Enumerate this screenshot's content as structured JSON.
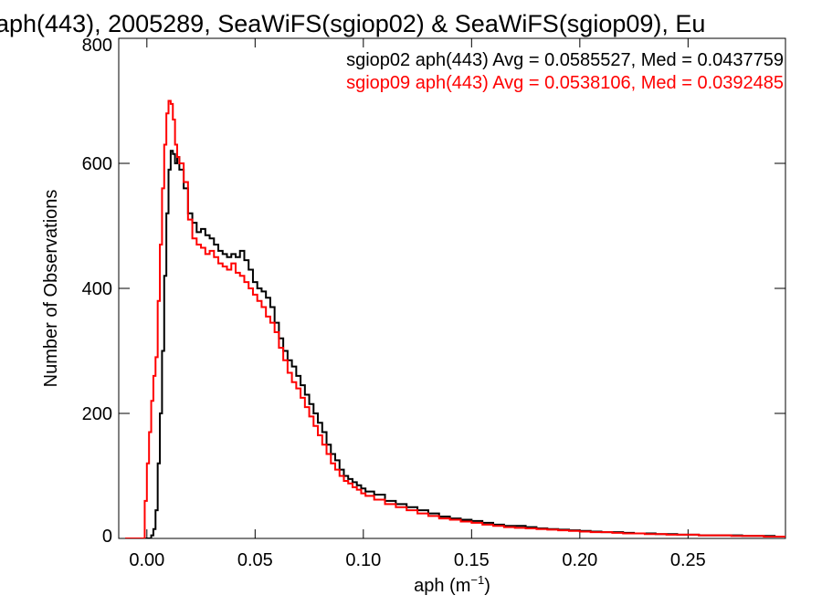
{
  "chart_data": {
    "type": "histogram-step",
    "title": "aph(443), 2005289, SeaWiFS(sgiop02) & SeaWiFS(sgiop09), Eu",
    "xlabel_base": "aph (m",
    "xlabel_sup": "−1",
    "xlabel_close": ")",
    "ylabel": "Number of Observations",
    "xlim": [
      -0.013,
      0.295
    ],
    "ylim": [
      0,
      800
    ],
    "xticks": [
      0.0,
      0.05,
      0.1,
      0.15,
      0.2,
      0.25
    ],
    "xtick_labels": [
      "0.00",
      "0.05",
      "0.10",
      "0.15",
      "0.20",
      "0.25"
    ],
    "yticks": [
      0,
      200,
      400,
      600,
      800
    ],
    "ytick_labels": [
      "0",
      "200",
      "400",
      "600",
      "800"
    ],
    "annotations": [
      {
        "text": "sgiop02 aph(443) Avg = 0.0585527, Med = 0.0437759",
        "color": "#000000"
      },
      {
        "text": "sgiop09 aph(443) Avg = 0.0538106, Med = 0.0392485",
        "color": "#ff0000"
      }
    ],
    "series": [
      {
        "color": "#000000",
        "points": [
          [
            -0.01,
            0
          ],
          [
            0.0,
            0
          ],
          [
            0.002,
            5
          ],
          [
            0.003,
            15
          ],
          [
            0.004,
            45
          ],
          [
            0.005,
            120
          ],
          [
            0.006,
            200
          ],
          [
            0.007,
            300
          ],
          [
            0.008,
            420
          ],
          [
            0.009,
            520
          ],
          [
            0.01,
            590
          ],
          [
            0.011,
            620
          ],
          [
            0.012,
            615
          ],
          [
            0.013,
            600
          ],
          [
            0.014,
            610
          ],
          [
            0.015,
            590
          ],
          [
            0.017,
            560
          ],
          [
            0.019,
            520
          ],
          [
            0.021,
            505
          ],
          [
            0.023,
            490
          ],
          [
            0.025,
            495
          ],
          [
            0.027,
            485
          ],
          [
            0.029,
            480
          ],
          [
            0.031,
            470
          ],
          [
            0.033,
            460
          ],
          [
            0.035,
            455
          ],
          [
            0.037,
            450
          ],
          [
            0.039,
            455
          ],
          [
            0.041,
            450
          ],
          [
            0.043,
            460
          ],
          [
            0.045,
            445
          ],
          [
            0.047,
            430
          ],
          [
            0.049,
            410
          ],
          [
            0.051,
            400
          ],
          [
            0.053,
            395
          ],
          [
            0.055,
            385
          ],
          [
            0.057,
            370
          ],
          [
            0.059,
            345
          ],
          [
            0.061,
            320
          ],
          [
            0.063,
            300
          ],
          [
            0.065,
            285
          ],
          [
            0.067,
            275
          ],
          [
            0.069,
            260
          ],
          [
            0.071,
            245
          ],
          [
            0.073,
            230
          ],
          [
            0.075,
            215
          ],
          [
            0.077,
            200
          ],
          [
            0.079,
            185
          ],
          [
            0.081,
            170
          ],
          [
            0.083,
            150
          ],
          [
            0.085,
            135
          ],
          [
            0.087,
            125
          ],
          [
            0.089,
            110
          ],
          [
            0.091,
            100
          ],
          [
            0.093,
            95
          ],
          [
            0.095,
            90
          ],
          [
            0.097,
            85
          ],
          [
            0.099,
            80
          ],
          [
            0.101,
            75
          ],
          [
            0.105,
            70
          ],
          [
            0.11,
            60
          ],
          [
            0.115,
            55
          ],
          [
            0.12,
            50
          ],
          [
            0.125,
            45
          ],
          [
            0.13,
            40
          ],
          [
            0.135,
            35
          ],
          [
            0.14,
            32
          ],
          [
            0.145,
            30
          ],
          [
            0.15,
            28
          ],
          [
            0.155,
            25
          ],
          [
            0.16,
            22
          ],
          [
            0.165,
            20
          ],
          [
            0.17,
            20
          ],
          [
            0.175,
            18
          ],
          [
            0.18,
            16
          ],
          [
            0.185,
            15
          ],
          [
            0.19,
            14
          ],
          [
            0.195,
            13
          ],
          [
            0.2,
            12
          ],
          [
            0.205,
            11
          ],
          [
            0.21,
            10
          ],
          [
            0.215,
            10
          ],
          [
            0.22,
            9
          ],
          [
            0.225,
            8
          ],
          [
            0.23,
            8
          ],
          [
            0.235,
            7
          ],
          [
            0.24,
            7
          ],
          [
            0.245,
            6
          ],
          [
            0.25,
            6
          ],
          [
            0.255,
            5
          ],
          [
            0.26,
            5
          ],
          [
            0.265,
            5
          ],
          [
            0.27,
            5
          ],
          [
            0.275,
            4
          ],
          [
            0.28,
            4
          ],
          [
            0.285,
            4
          ],
          [
            0.29,
            3
          ],
          [
            0.295,
            3
          ]
        ]
      },
      {
        "color": "#ff0000",
        "points": [
          [
            -0.01,
            0
          ],
          [
            -0.002,
            0
          ],
          [
            -0.001,
            60
          ],
          [
            0.0,
            120
          ],
          [
            0.001,
            170
          ],
          [
            0.002,
            220
          ],
          [
            0.003,
            260
          ],
          [
            0.004,
            290
          ],
          [
            0.005,
            380
          ],
          [
            0.006,
            470
          ],
          [
            0.007,
            560
          ],
          [
            0.008,
            630
          ],
          [
            0.009,
            680
          ],
          [
            0.01,
            700
          ],
          [
            0.011,
            695
          ],
          [
            0.012,
            670
          ],
          [
            0.013,
            630
          ],
          [
            0.014,
            610
          ],
          [
            0.015,
            600
          ],
          [
            0.017,
            570
          ],
          [
            0.019,
            510
          ],
          [
            0.021,
            480
          ],
          [
            0.023,
            470
          ],
          [
            0.025,
            465
          ],
          [
            0.027,
            455
          ],
          [
            0.029,
            460
          ],
          [
            0.031,
            450
          ],
          [
            0.033,
            440
          ],
          [
            0.035,
            435
          ],
          [
            0.037,
            430
          ],
          [
            0.039,
            440
          ],
          [
            0.041,
            425
          ],
          [
            0.043,
            420
          ],
          [
            0.045,
            410
          ],
          [
            0.047,
            400
          ],
          [
            0.049,
            390
          ],
          [
            0.051,
            380
          ],
          [
            0.053,
            370
          ],
          [
            0.055,
            355
          ],
          [
            0.057,
            345
          ],
          [
            0.059,
            330
          ],
          [
            0.061,
            305
          ],
          [
            0.063,
            285
          ],
          [
            0.065,
            265
          ],
          [
            0.067,
            250
          ],
          [
            0.069,
            240
          ],
          [
            0.071,
            225
          ],
          [
            0.073,
            210
          ],
          [
            0.075,
            195
          ],
          [
            0.077,
            180
          ],
          [
            0.079,
            165
          ],
          [
            0.081,
            150
          ],
          [
            0.083,
            135
          ],
          [
            0.085,
            120
          ],
          [
            0.087,
            110
          ],
          [
            0.089,
            100
          ],
          [
            0.091,
            92
          ],
          [
            0.093,
            88
          ],
          [
            0.095,
            82
          ],
          [
            0.097,
            78
          ],
          [
            0.099,
            72
          ],
          [
            0.101,
            68
          ],
          [
            0.105,
            62
          ],
          [
            0.11,
            55
          ],
          [
            0.115,
            50
          ],
          [
            0.12,
            45
          ],
          [
            0.125,
            40
          ],
          [
            0.13,
            36
          ],
          [
            0.135,
            32
          ],
          [
            0.14,
            30
          ],
          [
            0.145,
            27
          ],
          [
            0.15,
            25
          ],
          [
            0.155,
            22
          ],
          [
            0.16,
            20
          ],
          [
            0.165,
            18
          ],
          [
            0.17,
            17
          ],
          [
            0.175,
            16
          ],
          [
            0.18,
            15
          ],
          [
            0.185,
            14
          ],
          [
            0.19,
            13
          ],
          [
            0.195,
            12
          ],
          [
            0.2,
            11
          ],
          [
            0.205,
            10
          ],
          [
            0.21,
            10
          ],
          [
            0.215,
            9
          ],
          [
            0.22,
            8
          ],
          [
            0.225,
            8
          ],
          [
            0.23,
            7
          ],
          [
            0.235,
            7
          ],
          [
            0.24,
            6
          ],
          [
            0.245,
            6
          ],
          [
            0.25,
            6
          ],
          [
            0.255,
            5
          ],
          [
            0.26,
            5
          ],
          [
            0.265,
            5
          ],
          [
            0.27,
            4
          ],
          [
            0.275,
            4
          ],
          [
            0.28,
            4
          ],
          [
            0.285,
            3
          ],
          [
            0.29,
            3
          ],
          [
            0.295,
            3
          ]
        ]
      }
    ]
  }
}
